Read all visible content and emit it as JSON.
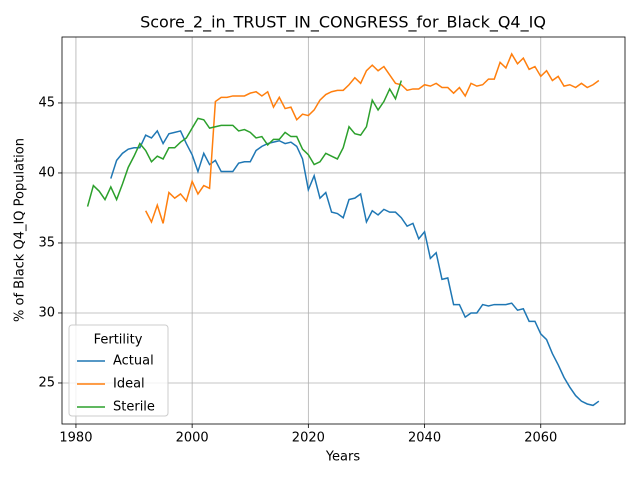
{
  "chart_data": {
    "type": "line",
    "title": "Score_2_in_TRUST_IN_CONGRESS_for_Black_Q4_IQ",
    "xlabel": "Years",
    "ylabel": "% of Black Q4_IQ Population",
    "legend_title": "Fertility",
    "legend": "lower left",
    "grid": true,
    "xlim": [
      1977.6,
      2074.5
    ],
    "xticks": [
      1980,
      2000,
      2020,
      2040,
      2060
    ],
    "ylim": [
      22.07,
      49.71
    ],
    "yticks": [
      25,
      30,
      35,
      40,
      45
    ],
    "x": [
      1982,
      1983,
      1984,
      1985,
      1986,
      1987,
      1988,
      1989,
      1990,
      1991,
      1992,
      1993,
      1994,
      1995,
      1996,
      1997,
      1998,
      1999,
      2000,
      2001,
      2002,
      2003,
      2004,
      2005,
      2006,
      2007,
      2008,
      2009,
      2010,
      2011,
      2012,
      2013,
      2014,
      2015,
      2016,
      2017,
      2018,
      2019,
      2020,
      2021,
      2022,
      2023,
      2024,
      2025,
      2026,
      2027,
      2028,
      2029,
      2030,
      2031,
      2032,
      2033,
      2034,
      2035,
      2036,
      2037,
      2038,
      2039,
      2040,
      2041,
      2042,
      2043,
      2044,
      2045,
      2046,
      2047,
      2048,
      2049,
      2050,
      2051,
      2052,
      2053,
      2054,
      2055,
      2056,
      2057,
      2058,
      2059,
      2060,
      2061,
      2062,
      2063,
      2064,
      2065,
      2066,
      2067,
      2068,
      2069,
      2070
    ],
    "series": [
      {
        "name": "Actual",
        "color": "#1f77b4",
        "values": [
          null,
          null,
          null,
          null,
          39.6,
          40.9,
          41.4,
          41.7,
          41.8,
          41.8,
          42.7,
          42.5,
          43.0,
          42.1,
          42.8,
          42.9,
          43.0,
          42.1,
          41.3,
          40.1,
          41.4,
          40.6,
          40.9,
          40.1,
          40.1,
          40.1,
          40.7,
          40.8,
          40.8,
          41.6,
          41.9,
          42.1,
          42.2,
          42.3,
          42.1,
          42.2,
          41.9,
          41.0,
          38.8,
          39.8,
          38.2,
          38.6,
          37.2,
          37.1,
          36.8,
          38.1,
          38.2,
          38.5,
          36.5,
          37.3,
          37.0,
          37.4,
          37.2,
          37.2,
          36.8,
          36.2,
          36.4,
          35.3,
          35.8,
          33.9,
          34.3,
          32.4,
          32.5,
          30.6,
          30.6,
          29.7,
          30.0,
          30.0,
          30.6,
          30.5,
          30.6,
          30.6,
          30.6,
          30.7,
          30.2,
          30.3,
          29.4,
          29.4,
          28.5,
          28.1,
          27.1,
          26.3,
          25.4,
          24.7,
          24.1,
          23.7,
          23.5,
          23.4,
          23.7
        ]
      },
      {
        "name": "Ideal",
        "color": "#ff7f0e",
        "values": [
          null,
          null,
          null,
          null,
          null,
          null,
          null,
          null,
          null,
          null,
          37.3,
          36.5,
          37.7,
          36.4,
          38.6,
          38.2,
          38.5,
          38.0,
          39.4,
          38.5,
          39.1,
          38.9,
          45.1,
          45.4,
          45.4,
          45.5,
          45.5,
          45.5,
          45.7,
          45.8,
          45.5,
          45.8,
          44.7,
          45.4,
          44.6,
          44.7,
          43.8,
          44.2,
          44.1,
          44.5,
          45.2,
          45.6,
          45.8,
          45.9,
          45.9,
          46.3,
          46.8,
          46.4,
          47.3,
          47.7,
          47.3,
          47.6,
          47.0,
          46.4,
          46.3,
          45.9,
          46.0,
          46.0,
          46.3,
          46.2,
          46.4,
          46.1,
          46.1,
          45.7,
          46.1,
          45.5,
          46.4,
          46.2,
          46.3,
          46.7,
          46.7,
          47.9,
          47.5,
          48.5,
          47.8,
          48.2,
          47.4,
          47.6,
          46.9,
          47.3,
          46.6,
          46.9,
          46.2,
          46.3,
          46.1,
          46.4,
          46.1,
          46.3,
          46.6
        ]
      },
      {
        "name": "Sterile",
        "color": "#2ca02c",
        "values": [
          37.6,
          39.1,
          38.7,
          38.1,
          39.0,
          38.1,
          39.2,
          40.4,
          41.2,
          42.1,
          41.6,
          40.8,
          41.2,
          41.0,
          41.8,
          41.8,
          42.2,
          42.5,
          43.2,
          43.9,
          43.8,
          43.2,
          43.3,
          43.4,
          43.4,
          43.4,
          43.0,
          43.1,
          42.9,
          42.5,
          42.6,
          42.0,
          42.4,
          42.4,
          42.9,
          42.6,
          42.6,
          41.7,
          41.3,
          40.6,
          40.8,
          41.4,
          41.2,
          41.0,
          41.8,
          43.3,
          42.8,
          42.7,
          43.3,
          45.2,
          44.5,
          45.1,
          46.0,
          45.3,
          46.6,
          null,
          null,
          null,
          null,
          null,
          null,
          null,
          null,
          null,
          null,
          null,
          null,
          null,
          null,
          null,
          null,
          null,
          null,
          null,
          null,
          null,
          null,
          null,
          null,
          null,
          null,
          null,
          null,
          null,
          null,
          null,
          null,
          null,
          null
        ]
      }
    ]
  }
}
